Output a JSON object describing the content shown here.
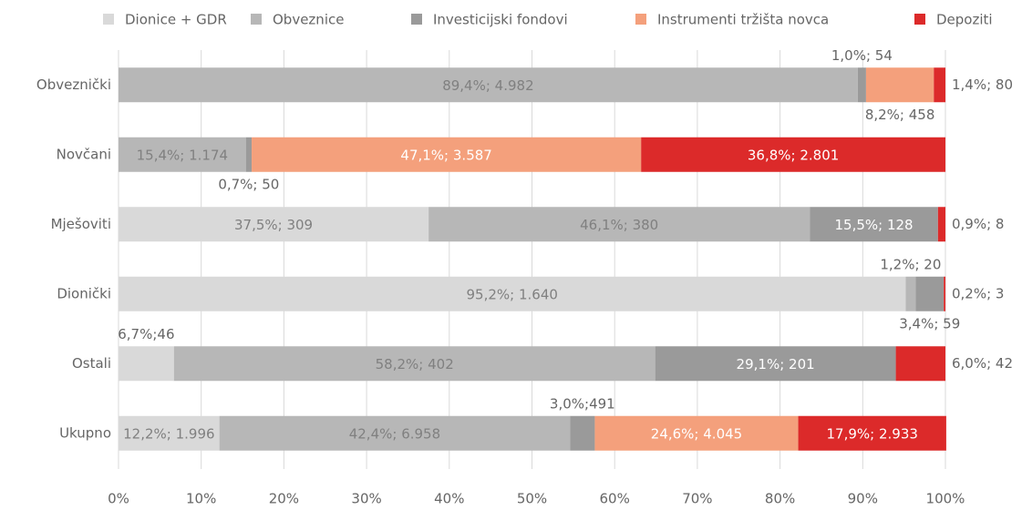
{
  "chart_data": {
    "type": "stacked-bar-horizontal",
    "categories": [
      "Obveznički",
      "Novčani",
      "Mješoviti",
      "Dionički",
      "Ostali",
      "Ukupno"
    ],
    "series": [
      {
        "name": "Dionice + GDR",
        "color": "#d9d9d9",
        "values": [
          0,
          0,
          37.5,
          95.2,
          6.7,
          12.2
        ],
        "value_labels": [
          null,
          null,
          "37,5%; 309",
          "95,2%; 1.640",
          "6,7%;46",
          "12,2%; 1.996"
        ]
      },
      {
        "name": "Obveznice",
        "color": "#b7b7b7",
        "values": [
          89.4,
          15.4,
          46.1,
          1.2,
          58.2,
          42.4
        ],
        "value_labels": [
          "89,4%; 4.982",
          "15,4%; 1.174",
          "46,1%; 380",
          "1,2%; 20",
          "58,2%; 402",
          "42,4%; 6.958"
        ]
      },
      {
        "name": "Investicijski fondovi",
        "color": "#9a9a9a",
        "values": [
          1.0,
          0.7,
          15.5,
          3.4,
          29.1,
          3.0
        ],
        "value_labels": [
          "1,0%; 54",
          "0,7%; 50",
          "15,5%; 128",
          "3,4%; 59",
          "29,1%; 201",
          "3,0%;491"
        ]
      },
      {
        "name": "Instrumenti tržišta novca",
        "color": "#f4a07c",
        "values": [
          8.2,
          47.1,
          0,
          0,
          0,
          24.6
        ],
        "value_labels": [
          "8,2%; 458",
          "47,1%; 3.587",
          null,
          null,
          null,
          "24,6%; 4.045"
        ]
      },
      {
        "name": "Depoziti",
        "color": "#dc2a2a",
        "values": [
          1.4,
          36.8,
          0.9,
          0.2,
          6.0,
          17.9
        ],
        "value_labels": [
          "1,4%; 80",
          "36,8%; 2.801",
          "0,9%; 8",
          "0,2%; 3",
          "6,0%; 42",
          "17,9%; 2.933"
        ]
      }
    ],
    "xlim": [
      0,
      100
    ],
    "xticks": [
      {
        "value": 0,
        "label": "0%"
      },
      {
        "value": 10,
        "label": "10%"
      },
      {
        "value": 20,
        "label": "20%"
      },
      {
        "value": 30,
        "label": "30%"
      },
      {
        "value": 40,
        "label": "40%"
      },
      {
        "value": 50,
        "label": "50%"
      },
      {
        "value": 60,
        "label": "60%"
      },
      {
        "value": 70,
        "label": "70%"
      },
      {
        "value": 80,
        "label": "80%"
      },
      {
        "value": 90,
        "label": "90%"
      },
      {
        "value": 100,
        "label": "100%"
      }
    ],
    "grid": true,
    "legend": "top"
  }
}
